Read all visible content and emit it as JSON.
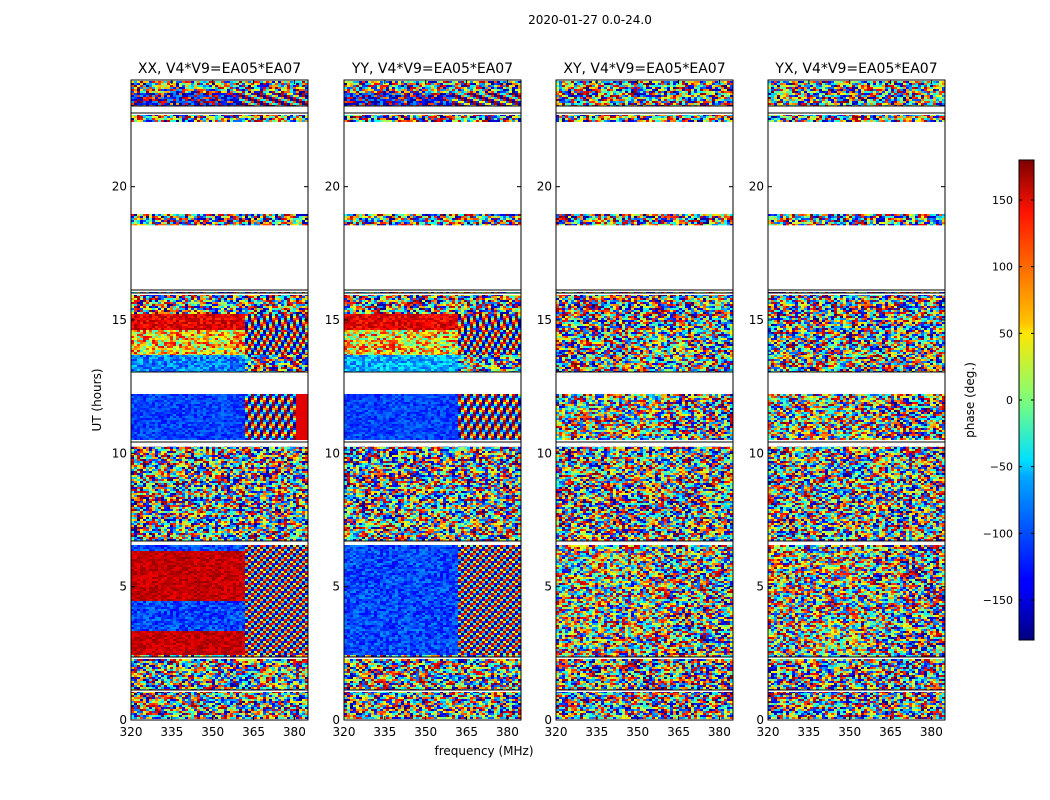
{
  "chart_data": {
    "type": "heatmap",
    "suptitle": "2020-01-27 0.0-24.0",
    "panels": [
      {
        "title": "XX, V4*V9=EA05*EA07",
        "style": "parallel"
      },
      {
        "title": "YY, V4*V9=EA05*EA07",
        "style": "parallel"
      },
      {
        "title": "XY, V4*V9=EA05*EA07",
        "style": "cross"
      },
      {
        "title": "YX, V4*V9=EA05*EA07",
        "style": "cross"
      }
    ],
    "xlabel": "frequency (MHz)",
    "ylabel": "UT (hours)",
    "xlim": [
      320,
      385
    ],
    "ylim": [
      0,
      24
    ],
    "xticks": [
      320,
      335,
      350,
      365,
      380
    ],
    "yticks": [
      0,
      5,
      10,
      15,
      20
    ],
    "gap_bands_hours": [
      [
        18.55,
        16.15
      ],
      [
        22.4,
        19.05
      ],
      [
        12.75,
        12.35
      ],
      [
        10.35,
        10.25
      ]
    ],
    "colorbar": {
      "label": "phase (deg.)",
      "range": [
        -180,
        180
      ],
      "ticks": [
        150,
        100,
        50,
        0,
        -50,
        -100,
        -150
      ],
      "tick_labels": [
        "150",
        "100",
        "50",
        "0",
        "−50",
        "−100",
        "−150"
      ],
      "colormap": "jet"
    }
  }
}
